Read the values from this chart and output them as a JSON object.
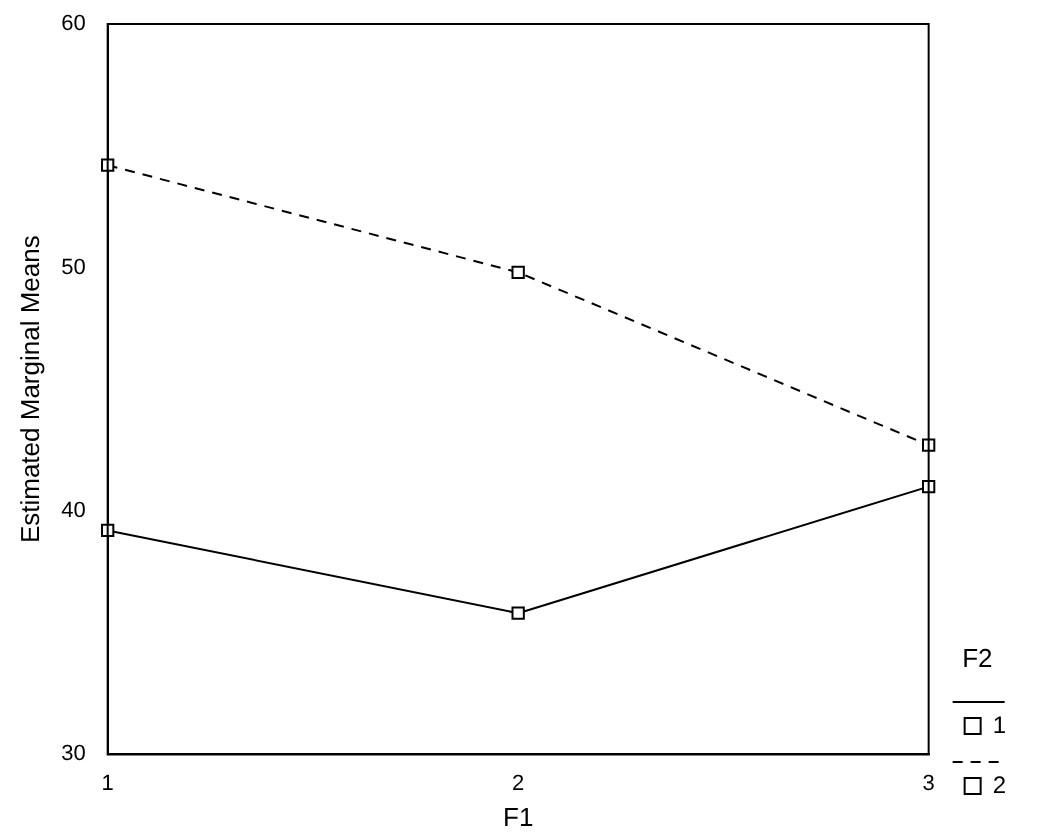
{
  "chart_data": {
    "type": "line",
    "xlabel": "F1",
    "ylabel": "Estimated Marginal Means",
    "legend_title": "F2",
    "categories": [
      "1",
      "2",
      "3"
    ],
    "series": [
      {
        "name": "1",
        "color": "#000000",
        "line_style": "solid",
        "values": [
          39.2,
          35.8,
          41.0
        ]
      },
      {
        "name": "2",
        "color": "#000000",
        "line_style": "dashed",
        "values": [
          54.2,
          49.8,
          42.7
        ]
      }
    ],
    "ylim": [
      30,
      60
    ],
    "yticks": [
      30,
      40,
      50,
      60
    ],
    "grid": false,
    "legend": "bottom right",
    "marker": "square"
  }
}
